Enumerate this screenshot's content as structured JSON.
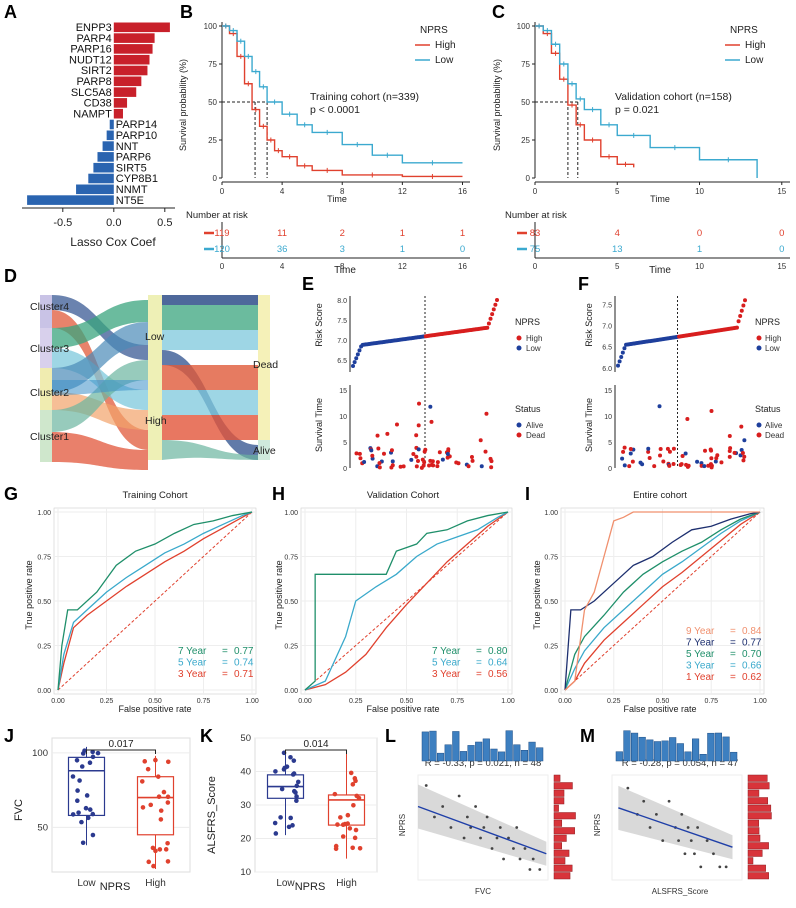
{
  "chart_data": [
    {
      "panel": "A",
      "type": "bar",
      "orientation": "horizontal",
      "categories": [
        "ENPP3",
        "PARP4",
        "PARP16",
        "NUDT12",
        "SIRT2",
        "PARP8",
        "SLC5A8",
        "CD38",
        "NAMPT",
        "PARP14",
        "PARP10",
        "NNT",
        "PARP6",
        "SIRT5",
        "CYP8B1",
        "NNMT",
        "NT5E"
      ],
      "values": [
        0.55,
        0.4,
        0.38,
        0.35,
        0.33,
        0.27,
        0.22,
        0.13,
        0.09,
        -0.04,
        -0.07,
        -0.11,
        -0.16,
        -0.2,
        -0.25,
        -0.37,
        -0.85
      ],
      "xlabel": "Lasso Cox Coef",
      "xticks": [
        -0.5,
        0.0,
        0.5
      ],
      "xticklabels": [
        "-0.5",
        "0.0",
        "0.5"
      ],
      "xlim": [
        -0.9,
        0.6
      ],
      "colors": {
        "positive": "#c8202a",
        "negative": "#2a64b0"
      }
    },
    {
      "panel": "B",
      "type": "line",
      "subtype": "kaplan-meier",
      "legend_title": "NPRS",
      "series": [
        {
          "name": "High",
          "color": "#e0412e",
          "x": [
            0,
            0.5,
            1,
            1.5,
            2,
            2.5,
            3,
            3.5,
            4,
            5,
            6,
            8,
            12,
            16
          ],
          "y": [
            100,
            95,
            80,
            62,
            45,
            34,
            25,
            18,
            14,
            8,
            5,
            2,
            1,
            1
          ]
        },
        {
          "name": "Low",
          "color": "#3ba9cf",
          "x": [
            0,
            0.5,
            1,
            1.5,
            2,
            2.5,
            3,
            4,
            5,
            6,
            8,
            10,
            12,
            16
          ],
          "y": [
            100,
            97,
            90,
            80,
            70,
            60,
            50,
            42,
            35,
            30,
            22,
            15,
            10,
            10
          ]
        }
      ],
      "annotation": "Training cohort (n=339)",
      "pvalue": "p < 0.0001",
      "median_lines": [
        2.2,
        3.0
      ],
      "xlabel": "Time",
      "ylabel": "Survival probability (%)",
      "xticks": [
        0,
        4,
        8,
        12,
        16
      ],
      "yticks": [
        0,
        25,
        50,
        75,
        100
      ],
      "xlim": [
        0,
        16.5
      ],
      "ylim": [
        0,
        100
      ],
      "risk_title": "Number at risk",
      "risk_x": [
        0,
        4,
        8,
        12,
        16
      ],
      "risk_high": [
        "119",
        "11",
        "2",
        "1",
        "1"
      ],
      "risk_low": [
        "120",
        "36",
        "3",
        "1",
        "0"
      ]
    },
    {
      "panel": "C",
      "type": "line",
      "subtype": "kaplan-meier",
      "legend_title": "NPRS",
      "series": [
        {
          "name": "High",
          "color": "#e0412e",
          "x": [
            0,
            0.5,
            1,
            1.5,
            2,
            2.5,
            3,
            4,
            5,
            6
          ],
          "y": [
            100,
            95,
            82,
            65,
            48,
            35,
            25,
            14,
            9,
            7
          ]
        },
        {
          "name": "Low",
          "color": "#3ba9cf",
          "x": [
            0,
            0.5,
            1,
            1.5,
            2,
            2.5,
            3,
            4,
            5,
            7,
            10,
            13.5
          ],
          "y": [
            100,
            97,
            88,
            75,
            62,
            52,
            45,
            35,
            28,
            20,
            12,
            0
          ]
        }
      ],
      "annotation": "Validation cohort (n=158)",
      "pvalue": "p = 0.021",
      "median_lines": [
        2.0,
        2.6
      ],
      "xlabel": "Time",
      "ylabel": "Survival probability (%)",
      "xticks": [
        0,
        5,
        10,
        15
      ],
      "yticks": [
        0,
        25,
        50,
        75,
        100
      ],
      "xlim": [
        0,
        15.5
      ],
      "ylim": [
        0,
        100
      ],
      "risk_title": "Number at risk",
      "risk_x": [
        0,
        5,
        10,
        15
      ],
      "risk_high": [
        "83",
        "4",
        "0",
        "0"
      ],
      "risk_low": [
        "75",
        "13",
        "1",
        "0"
      ]
    },
    {
      "panel": "D",
      "type": "other",
      "subtype": "sankey",
      "left_nodes": [
        "Cluster4",
        "Cluster3",
        "Cluster2",
        "Cluster1"
      ],
      "mid_nodes": [
        "Low",
        "High"
      ],
      "right_nodes": [
        "Dead",
        "Alive"
      ]
    },
    {
      "panel": "E",
      "type": "scatter",
      "subtype": "risk-plot",
      "risk_ylabel": "Risk Score",
      "risk_yticks": [
        "6.5",
        "7.0",
        "7.5",
        "8.0"
      ],
      "risk_ylim": [
        6.2,
        8.1
      ],
      "legend1_title": "NPRS",
      "legend1": [
        "High",
        "Low"
      ],
      "time_ylabel": "Survival Time",
      "time_yticks": [
        "0",
        "5",
        "10",
        "15"
      ],
      "time_ylim": [
        0,
        16
      ],
      "legend2_title": "Status",
      "legend2": [
        "Alive",
        "Dead"
      ],
      "cutoff_fraction": 0.5
    },
    {
      "panel": "F",
      "type": "scatter",
      "subtype": "risk-plot",
      "risk_ylabel": "Risk Score",
      "risk_yticks": [
        "6.0",
        "6.5",
        "7.0",
        "7.5"
      ],
      "risk_ylim": [
        5.9,
        7.7
      ],
      "legend1_title": "NPRS",
      "legend1": [
        "High",
        "Low"
      ],
      "time_ylabel": "Survival Time",
      "time_yticks": [
        "0",
        "5",
        "10",
        "15"
      ],
      "time_ylim": [
        0,
        16
      ],
      "legend2_title": "Status",
      "legend2": [
        "Alive",
        "Dead"
      ],
      "cutoff_fraction": 0.47
    },
    {
      "panel": "G",
      "type": "line",
      "subtype": "roc",
      "title": "Training Cohort",
      "xlabel": "False positive rate",
      "ylabel": "True positive rate",
      "ticks": [
        "0.00",
        "0.25",
        "0.50",
        "0.75",
        "1.00"
      ],
      "series": [
        {
          "label": "7 Year",
          "auc": "0.77",
          "color": "#1f8f6a",
          "x": [
            0,
            0.02,
            0.05,
            0.1,
            0.2,
            0.3,
            0.4,
            0.5,
            0.6,
            0.7,
            0.8,
            0.9,
            1
          ],
          "y": [
            0,
            0.25,
            0.45,
            0.45,
            0.55,
            0.7,
            0.78,
            0.82,
            0.88,
            0.93,
            0.95,
            0.98,
            1
          ]
        },
        {
          "label": "5 Year",
          "auc": "0.74",
          "color": "#3aa9cb",
          "x": [
            0,
            0.03,
            0.08,
            0.15,
            0.25,
            0.35,
            0.45,
            0.55,
            0.65,
            0.75,
            0.85,
            0.95,
            1
          ],
          "y": [
            0,
            0.2,
            0.38,
            0.45,
            0.55,
            0.63,
            0.7,
            0.77,
            0.82,
            0.88,
            0.93,
            0.98,
            1
          ]
        },
        {
          "label": "3 Year",
          "auc": "0.71",
          "color": "#e0412e",
          "x": [
            0,
            0.03,
            0.08,
            0.15,
            0.25,
            0.35,
            0.45,
            0.55,
            0.65,
            0.75,
            0.85,
            0.95,
            1
          ],
          "y": [
            0,
            0.15,
            0.35,
            0.42,
            0.5,
            0.58,
            0.65,
            0.72,
            0.78,
            0.85,
            0.91,
            0.97,
            1
          ]
        }
      ]
    },
    {
      "panel": "H",
      "type": "line",
      "subtype": "roc",
      "title": "Validation Cohort",
      "xlabel": "False positive rate",
      "ylabel": "True positive rate",
      "ticks": [
        "0.00",
        "0.25",
        "0.50",
        "0.75",
        "1.00"
      ],
      "series": [
        {
          "label": "7 Year",
          "auc": "0.80",
          "color": "#1f8f6a",
          "x": [
            0,
            0.05,
            0.05,
            0.4,
            0.45,
            0.55,
            0.6,
            0.7,
            0.8,
            0.9,
            1
          ],
          "y": [
            0,
            0.05,
            0.65,
            0.65,
            0.78,
            0.82,
            0.88,
            0.9,
            0.95,
            0.98,
            1
          ]
        },
        {
          "label": "5 Year",
          "auc": "0.64",
          "color": "#3aa9cb",
          "x": [
            0,
            0.1,
            0.2,
            0.25,
            0.35,
            0.45,
            0.55,
            0.65,
            0.75,
            0.85,
            0.95,
            1
          ],
          "y": [
            0,
            0.05,
            0.3,
            0.5,
            0.58,
            0.65,
            0.75,
            0.82,
            0.86,
            0.9,
            0.97,
            1
          ]
        },
        {
          "label": "3 Year",
          "auc": "0.56",
          "color": "#e0412e",
          "x": [
            0,
            0.1,
            0.2,
            0.3,
            0.4,
            0.5,
            0.6,
            0.7,
            0.8,
            0.9,
            1
          ],
          "y": [
            0,
            0.03,
            0.1,
            0.2,
            0.35,
            0.48,
            0.6,
            0.72,
            0.82,
            0.92,
            1
          ]
        }
      ]
    },
    {
      "panel": "I",
      "type": "line",
      "subtype": "roc",
      "title": "Entire cohort",
      "xlabel": "False positive rate",
      "ylabel": "True positive rate",
      "ticks": [
        "0.00",
        "0.25",
        "0.50",
        "0.75",
        "1.00"
      ],
      "series": [
        {
          "label": "9 Year",
          "auc": "0.84",
          "color": "#f0906e",
          "x": [
            0,
            0.05,
            0.1,
            0.15,
            0.2,
            0.25,
            0.3,
            0.35,
            0.5,
            0.7,
            1
          ],
          "y": [
            0,
            0.05,
            0.45,
            0.55,
            0.75,
            0.95,
            0.97,
            1,
            1,
            1,
            1
          ]
        },
        {
          "label": "7 Year",
          "auc": "0.77",
          "color": "#1d2f6f",
          "x": [
            0,
            0.03,
            0.08,
            0.15,
            0.25,
            0.35,
            0.45,
            0.55,
            0.65,
            0.75,
            0.85,
            0.95,
            1
          ],
          "y": [
            0,
            0.45,
            0.45,
            0.5,
            0.6,
            0.7,
            0.75,
            0.83,
            0.9,
            0.92,
            0.96,
            0.99,
            1
          ]
        },
        {
          "label": "5 Year",
          "auc": "0.70",
          "color": "#1f8f6a",
          "x": [
            0,
            0.05,
            0.1,
            0.2,
            0.3,
            0.4,
            0.5,
            0.6,
            0.7,
            0.8,
            0.9,
            1
          ],
          "y": [
            0,
            0.2,
            0.3,
            0.42,
            0.55,
            0.65,
            0.72,
            0.78,
            0.83,
            0.9,
            0.96,
            1
          ]
        },
        {
          "label": "3 Year",
          "auc": "0.66",
          "color": "#3aa9cb",
          "x": [
            0,
            0.05,
            0.1,
            0.2,
            0.3,
            0.4,
            0.5,
            0.6,
            0.7,
            0.8,
            0.9,
            1
          ],
          "y": [
            0,
            0.12,
            0.22,
            0.35,
            0.45,
            0.55,
            0.65,
            0.72,
            0.8,
            0.88,
            0.95,
            1
          ]
        },
        {
          "label": "1 Year",
          "auc": "0.62",
          "color": "#e0412e",
          "x": [
            0,
            0.05,
            0.1,
            0.2,
            0.3,
            0.4,
            0.5,
            0.6,
            0.7,
            0.8,
            0.9,
            1
          ],
          "y": [
            0,
            0.05,
            0.15,
            0.28,
            0.38,
            0.48,
            0.58,
            0.66,
            0.75,
            0.84,
            0.93,
            1
          ]
        }
      ]
    },
    {
      "panel": "J",
      "type": "other",
      "subtype": "boxplot",
      "categories": [
        "Low",
        "High"
      ],
      "xlabel": "NPRS",
      "ylabel": "FVC",
      "yticks": [
        50,
        100
      ],
      "ylim": [
        20,
        110
      ],
      "pvalue": "0.017",
      "boxes": [
        {
          "q1": 58,
          "median": 88,
          "q3": 97,
          "min": 38,
          "max": 104,
          "color": "#2b3a8f"
        },
        {
          "q1": 45,
          "median": 70,
          "q3": 84,
          "min": 22,
          "max": 98,
          "color": "#e0412e"
        }
      ]
    },
    {
      "panel": "K",
      "type": "other",
      "subtype": "boxplot",
      "categories": [
        "Low",
        "High"
      ],
      "xlabel": "NPRS",
      "ylabel": "ALSFRS_Score",
      "yticks": [
        10,
        20,
        30,
        40,
        50
      ],
      "ylim": [
        10,
        50
      ],
      "pvalue": "0.014",
      "boxes": [
        {
          "q1": 32,
          "median": 35.5,
          "q3": 39,
          "min": 21,
          "max": 46,
          "color": "#2b3a8f"
        },
        {
          "q1": 24,
          "median": 31.5,
          "q3": 33,
          "min": 14,
          "max": 46,
          "color": "#e0412e"
        }
      ]
    },
    {
      "panel": "L",
      "type": "scatter",
      "subtype": "correlation",
      "stat": "R = -0.33, p = 0.021, n = 48",
      "xlabel": "FVC",
      "ylabel": "NPRS",
      "x": [
        35,
        40,
        45,
        50,
        55,
        58,
        60,
        62,
        65,
        68,
        70,
        72,
        75,
        78,
        80,
        82,
        85,
        88,
        90,
        92,
        95,
        98,
        100,
        104
      ],
      "y": [
        7.3,
        7.0,
        7.1,
        6.9,
        7.2,
        6.8,
        7.0,
        6.9,
        7.1,
        6.8,
        6.9,
        7.0,
        6.7,
        6.8,
        6.9,
        6.6,
        6.8,
        6.7,
        6.9,
        6.6,
        6.7,
        6.5,
        6.6,
        6.5
      ],
      "fit": {
        "x0": 30,
        "y0": 7.1,
        "x1": 108,
        "y1": 6.65
      }
    },
    {
      "panel": "M",
      "type": "scatter",
      "subtype": "correlation",
      "stat": "R = -0.28, p = 0.054, n = 47",
      "xlabel": "ALSFRS_Score",
      "ylabel": "NPRS",
      "x": [
        15,
        18,
        20,
        22,
        24,
        26,
        28,
        30,
        31,
        32,
        33,
        34,
        35,
        36,
        37,
        38,
        40,
        42,
        44,
        46
      ],
      "y": [
        7.2,
        7.0,
        7.1,
        6.9,
        7.0,
        6.8,
        7.1,
        6.9,
        6.8,
        7.0,
        6.7,
        6.9,
        6.8,
        6.7,
        6.9,
        6.6,
        6.8,
        6.7,
        6.6,
        6.6
      ],
      "fit": {
        "x0": 12,
        "y0": 7.05,
        "x1": 48,
        "y1": 6.75
      }
    }
  ]
}
